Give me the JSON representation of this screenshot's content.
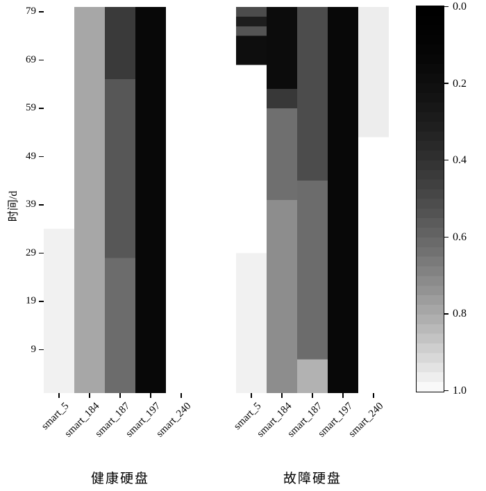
{
  "y_axis": {
    "label": "时间/d",
    "ticks": [
      79,
      69,
      59,
      49,
      39,
      29,
      19,
      9
    ],
    "min": 0,
    "max": 80
  },
  "colorbar": {
    "tick_labels": [
      "0.0",
      "0.2",
      "0.4",
      "0.6",
      "0.8",
      "1.0"
    ],
    "top_value": 0.0,
    "bottom_value": 1.0,
    "color_at_0": "#000000",
    "color_at_1": "#ffffff",
    "orientation": "vertical"
  },
  "chart_data": [
    {
      "type": "heatmap",
      "title": "健康硬盘",
      "x_categories": [
        "smart_5",
        "smart_184",
        "smart_187",
        "smart_197",
        "smart_240"
      ],
      "y_label": "时间/d",
      "y_min": 0,
      "y_max": 80,
      "value_scale": "0 = black (top of colorbar), 1 = white (bottom of colorbar)",
      "columns": {
        "smart_5": [
          {
            "days": [
              80,
              34
            ],
            "value": 1.0
          },
          {
            "days": [
              34,
              0
            ],
            "value": 0.97
          }
        ],
        "smart_184": [
          {
            "days": [
              80,
              0
            ],
            "value": 0.79
          }
        ],
        "smart_187": [
          {
            "days": [
              80,
              65
            ],
            "value": 0.44
          },
          {
            "days": [
              65,
              28
            ],
            "value": 0.55
          },
          {
            "days": [
              28,
              0
            ],
            "value": 0.62
          }
        ],
        "smart_197": [
          {
            "days": [
              80,
              0
            ],
            "value": 0.15
          }
        ],
        "smart_240": [
          {
            "days": [
              80,
              0
            ],
            "value": 1.0
          }
        ]
      }
    },
    {
      "type": "heatmap",
      "title": "故障硬盘",
      "x_categories": [
        "smart_5",
        "smart_184",
        "smart_187",
        "smart_197",
        "smart_240"
      ],
      "y_label": "时间/d",
      "y_min": 0,
      "y_max": 80,
      "value_scale": "0 = black (top of colorbar), 1 = white (bottom of colorbar)",
      "columns": {
        "smart_5": [
          {
            "days": [
              80,
              78
            ],
            "value": 0.51
          },
          {
            "days": [
              78,
              76
            ],
            "value": 0.3
          },
          {
            "days": [
              76,
              74
            ],
            "value": 0.54
          },
          {
            "days": [
              74,
              68
            ],
            "value": 0.2
          },
          {
            "days": [
              68,
              29
            ],
            "value": 1.0
          },
          {
            "days": [
              29,
              0
            ],
            "value": 0.97
          }
        ],
        "smart_184": [
          {
            "days": [
              80,
              63
            ],
            "value": 0.18
          },
          {
            "days": [
              63,
              59
            ],
            "value": 0.43
          },
          {
            "days": [
              59,
              40
            ],
            "value": 0.63
          },
          {
            "days": [
              40,
              0
            ],
            "value": 0.72
          }
        ],
        "smart_187": [
          {
            "days": [
              80,
              44
            ],
            "value": 0.51
          },
          {
            "days": [
              44,
              7
            ],
            "value": 0.62
          },
          {
            "days": [
              7,
              0
            ],
            "value": 0.82
          }
        ],
        "smart_197": [
          {
            "days": [
              80,
              0
            ],
            "value": 0.15
          }
        ],
        "smart_240": [
          {
            "days": [
              80,
              53
            ],
            "value": 0.96
          },
          {
            "days": [
              53,
              0
            ],
            "value": 1.0
          }
        ]
      }
    }
  ]
}
